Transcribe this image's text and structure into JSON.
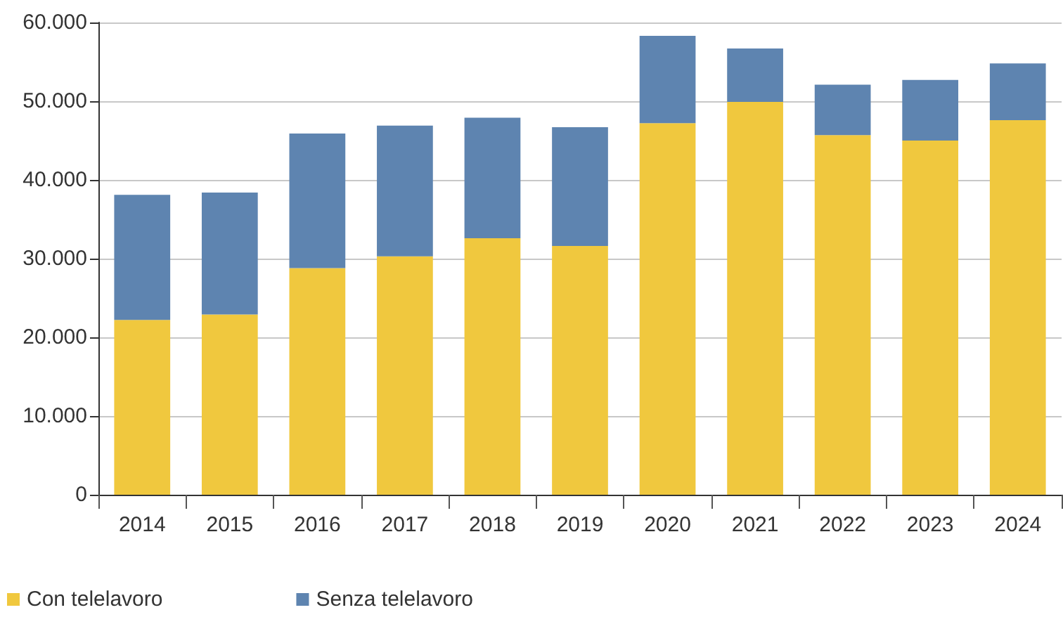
{
  "chart_data": {
    "type": "bar",
    "stacked": true,
    "categories": [
      "2014",
      "2015",
      "2016",
      "2017",
      "2018",
      "2019",
      "2020",
      "2021",
      "2022",
      "2023",
      "2024"
    ],
    "series": [
      {
        "name": "Con telelavoro",
        "color": "#f0c83e",
        "values": [
          22200,
          22900,
          28800,
          30300,
          32600,
          31600,
          47200,
          49900,
          45700,
          45000,
          47600
        ]
      },
      {
        "name": "Senza telelavoro",
        "color": "#5e84b0",
        "values": [
          15900,
          15500,
          17100,
          16600,
          15300,
          15100,
          11100,
          6800,
          6400,
          7700,
          7200
        ]
      }
    ],
    "ylim": [
      0,
      60000
    ],
    "yticks": [
      0,
      {
        "value": 10000,
        "label": "10.000"
      },
      {
        "value": 20000,
        "label": "20.000"
      },
      {
        "value": 30000,
        "label": "30.000"
      },
      {
        "value": 40000,
        "label": "40.000"
      },
      {
        "value": 50000,
        "label": "50.000"
      },
      {
        "value": 60000,
        "label": "60.000"
      }
    ],
    "grid": "y",
    "legend": "bottom left"
  }
}
